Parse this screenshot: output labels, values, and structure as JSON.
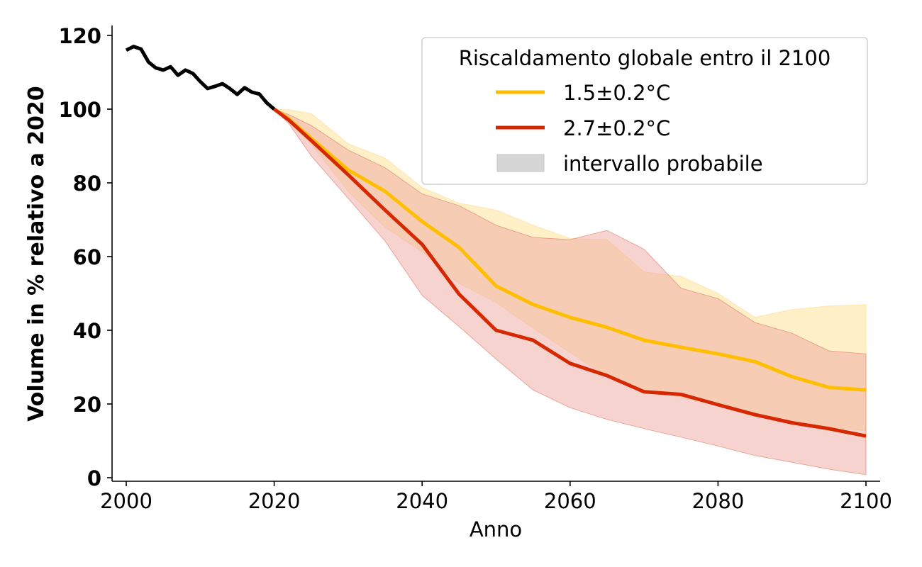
{
  "chart_data": {
    "type": "line",
    "title": "",
    "xlabel": "Anno",
    "ylabel": "Volume in % relativo a 2020",
    "xlim": [
      1998,
      2102
    ],
    "ylim": [
      -1,
      123
    ],
    "x_ticks": [
      2000,
      2020,
      2040,
      2060,
      2080,
      2100
    ],
    "y_ticks": [
      0,
      20,
      40,
      60,
      80,
      100,
      120
    ],
    "grid": false,
    "legend": {
      "title": "Riscaldamento globale entro il 2100",
      "placement": "top-right",
      "entries": [
        {
          "label": "1.5±0.2°C",
          "kind": "line",
          "color": "#FFBF00"
        },
        {
          "label": "2.7±0.2°C",
          "kind": "line",
          "color": "#D62800"
        },
        {
          "label": "intervallo probabile",
          "kind": "patch",
          "color": "#D6D6D6"
        }
      ]
    },
    "historical": {
      "name": "historical",
      "color": "#000000",
      "x": [
        2000,
        2001,
        2002,
        2003,
        2004,
        2005,
        2006,
        2007,
        2008,
        2009,
        2010,
        2011,
        2012,
        2013,
        2014,
        2015,
        2016,
        2017,
        2018,
        2019,
        2020
      ],
      "values": [
        116.0,
        117.0,
        116.3,
        112.8,
        111.2,
        110.6,
        111.5,
        109.2,
        110.6,
        109.7,
        107.5,
        105.6,
        106.2,
        106.9,
        105.6,
        104.0,
        105.8,
        104.6,
        104.1,
        101.7,
        100.0
      ]
    },
    "x": [
      2020,
      2022,
      2025,
      2030,
      2035,
      2040,
      2045,
      2050,
      2055,
      2060,
      2065,
      2070,
      2075,
      2080,
      2085,
      2090,
      2095,
      2100
    ],
    "series": [
      {
        "name": "1.5±0.2°C",
        "color": "#FFBF00",
        "band_color": "#FFE9B0",
        "values": [
          100.0,
          97.3,
          92.1,
          83.5,
          77.7,
          69.5,
          62.5,
          52.0,
          47.0,
          43.5,
          40.8,
          37.3,
          35.4,
          33.6,
          31.5,
          27.4,
          24.5,
          23.8
        ],
        "upper": [
          100.0,
          99.8,
          98.8,
          90.6,
          86.7,
          78.7,
          74.5,
          72.6,
          68.5,
          64.9,
          64.6,
          55.8,
          54.6,
          50.0,
          43.5,
          45.6,
          46.6,
          46.9
        ],
        "lower": [
          100.0,
          96.5,
          90.6,
          77.7,
          68.0,
          61.3,
          52.7,
          47.6,
          40.6,
          34.0,
          27.3,
          23.5,
          21.9,
          19.6,
          17.5,
          15.6,
          13.8,
          12.7
        ]
      },
      {
        "name": "2.7±0.2°C",
        "color": "#D62800",
        "band_color": "#F0A8A0",
        "values": [
          100.0,
          97.0,
          91.5,
          82.2,
          72.6,
          63.3,
          49.8,
          40.0,
          37.3,
          31.0,
          27.7,
          23.3,
          22.6,
          19.8,
          17.1,
          14.9,
          13.3,
          11.3
        ],
        "upper": [
          100.0,
          98.5,
          95.6,
          88.9,
          84.1,
          77.0,
          73.8,
          68.5,
          65.2,
          64.6,
          67.1,
          62.0,
          51.4,
          48.6,
          42.1,
          39.2,
          34.4,
          33.6
        ],
        "lower": [
          100.0,
          96.0,
          87.3,
          75.8,
          64.2,
          49.5,
          41.0,
          32.2,
          23.8,
          19.0,
          15.8,
          13.3,
          11.0,
          8.6,
          6.0,
          4.2,
          2.3,
          0.8
        ]
      }
    ]
  }
}
